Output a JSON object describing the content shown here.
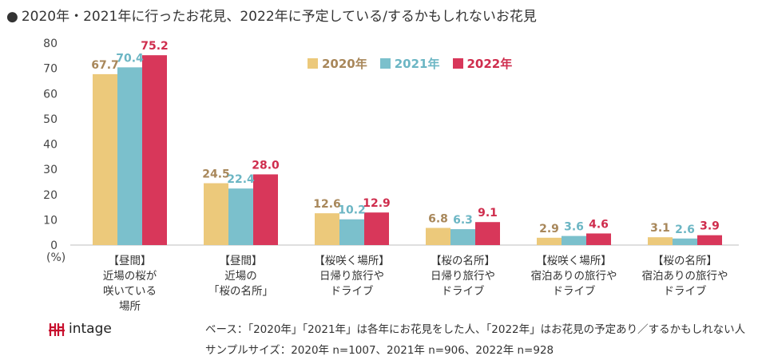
{
  "title": "2020年・2021年に行ったお花見、2022年に予定している/するかもしれないお花見",
  "title_bullet": "●",
  "unit_label": "(%)",
  "chart_data": {
    "type": "bar",
    "title": "2020年・2021年に行ったお花見、2022年に予定している/するかもしれないお花見",
    "ylabel": "(%)",
    "ylim": [
      0,
      80
    ],
    "yticks": [
      0,
      10,
      20,
      30,
      40,
      50,
      60,
      70,
      80
    ],
    "legend_position": "top-center",
    "categories": [
      [
        "【昼間】",
        "近場の桜が",
        "咲いている",
        "場所"
      ],
      [
        "【昼間】",
        "近場の",
        "「桜の名所」"
      ],
      [
        "【桜咲く場所】",
        "日帰り旅行や",
        "ドライブ"
      ],
      [
        "【桜の名所】",
        "日帰り旅行や",
        "ドライブ"
      ],
      [
        "【桜咲く場所】",
        "宿泊ありの旅行や",
        "ドライブ"
      ],
      [
        "【桜の名所】",
        "宿泊ありの旅行や",
        "ドライブ"
      ]
    ],
    "series": [
      {
        "name": "2020年",
        "color": "#ecc97b",
        "label_color": "#a8875a",
        "values": [
          67.7,
          24.5,
          12.6,
          6.8,
          2.9,
          3.1
        ]
      },
      {
        "name": "2021年",
        "color": "#7bc0cc",
        "label_color": "#6cb6c4",
        "values": [
          70.4,
          22.4,
          10.2,
          6.3,
          3.6,
          2.6
        ]
      },
      {
        "name": "2022年",
        "color": "#d8375a",
        "label_color": "#cf2d4d",
        "values": [
          75.2,
          28.0,
          12.9,
          9.1,
          4.6,
          3.9
        ]
      }
    ]
  },
  "logo": {
    "mark": "ꟷ",
    "brand": "intage"
  },
  "footnotes": {
    "base": "ベース：「2020年」「2021年」は各年にお花見をした人、「2022年」はお花見の予定あり／するかもしれない人",
    "sample": "サンプルサイズ：2020年 n=1007、2021年 n=906、2022年 n=928"
  }
}
